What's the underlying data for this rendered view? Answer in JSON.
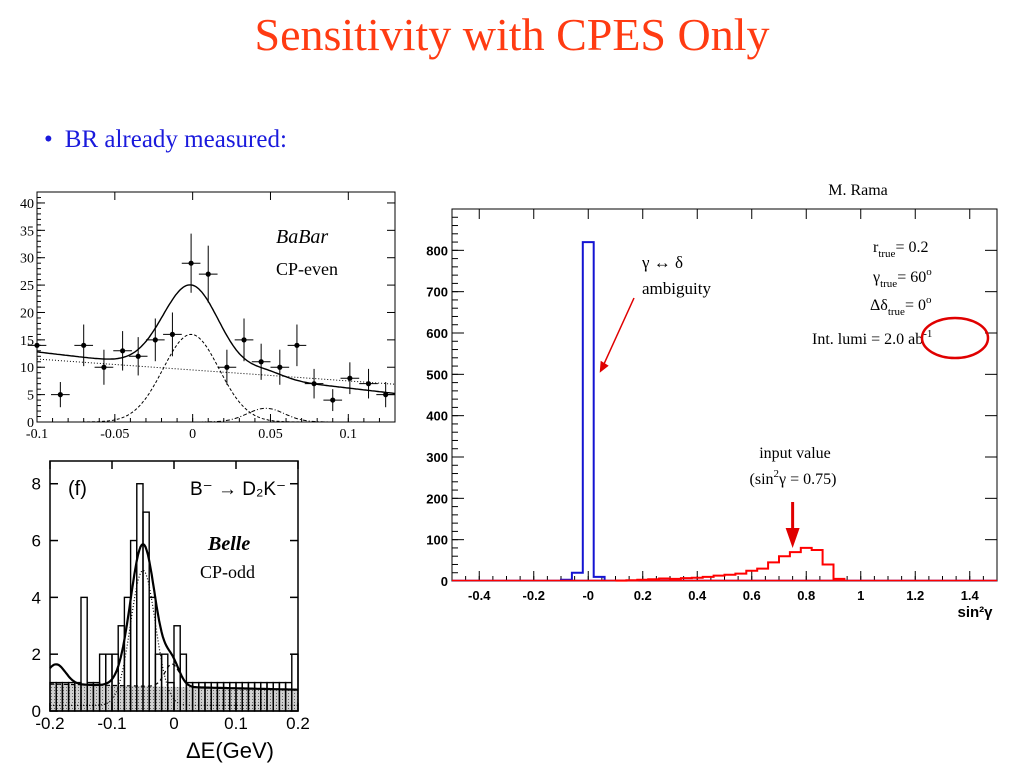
{
  "slide": {
    "title": "Sensitivity with CPES Only",
    "bullet": "BR already measured:"
  },
  "chart_data": [
    {
      "type": "scatter",
      "experiment": "BaBar",
      "subtitle": "CP-even",
      "xlim": [
        -0.1,
        0.13
      ],
      "ylim": [
        0,
        42
      ],
      "x_ticks": [
        -0.1,
        -0.05,
        0,
        0.05,
        0.1
      ],
      "x_tick_labels": [
        "-0.1",
        "-0.05",
        "0",
        "0.05",
        "0.1"
      ],
      "y_ticks": [
        0,
        5,
        10,
        15,
        20,
        25,
        30,
        35,
        40
      ],
      "y_tick_labels": [
        "0",
        "5",
        "10",
        "15",
        "20",
        "25",
        "30",
        "35",
        "40"
      ],
      "points": [
        {
          "x": -0.1,
          "y": 14,
          "err": 3.8
        },
        {
          "x": -0.085,
          "y": 5,
          "err": 2.3
        },
        {
          "x": -0.07,
          "y": 14,
          "err": 3.8
        },
        {
          "x": -0.057,
          "y": 10,
          "err": 3.2
        },
        {
          "x": -0.045,
          "y": 13,
          "err": 3.6
        },
        {
          "x": -0.035,
          "y": 12,
          "err": 3.5
        },
        {
          "x": -0.024,
          "y": 15,
          "err": 3.9
        },
        {
          "x": -0.013,
          "y": 16,
          "err": 4.0
        },
        {
          "x": -0.001,
          "y": 29,
          "err": 5.4
        },
        {
          "x": 0.01,
          "y": 27,
          "err": 5.2
        },
        {
          "x": 0.022,
          "y": 10,
          "err": 3.2
        },
        {
          "x": 0.033,
          "y": 15,
          "err": 3.9
        },
        {
          "x": 0.044,
          "y": 11,
          "err": 3.3
        },
        {
          "x": 0.056,
          "y": 10,
          "err": 3.2
        },
        {
          "x": 0.067,
          "y": 14,
          "err": 3.8
        },
        {
          "x": 0.078,
          "y": 7,
          "err": 2.7
        },
        {
          "x": 0.09,
          "y": 4,
          "err": 2.0
        },
        {
          "x": 0.101,
          "y": 8,
          "err": 2.9
        },
        {
          "x": 0.113,
          "y": 7,
          "err": 2.7
        },
        {
          "x": 0.124,
          "y": 5,
          "err": 2.3
        }
      ],
      "total_fit": {
        "background_intercept": 9.5,
        "background_slope": -33,
        "peak_mu": -0.001,
        "peak_sigma": 0.018,
        "peak_amp": 15.5
      },
      "signal": {
        "mu": -0.001,
        "sigma": 0.018,
        "amp": 16
      },
      "background": {
        "intercept": 9.5,
        "slope": -20
      },
      "satellite": {
        "mu": 0.047,
        "sigma": 0.012,
        "amp": 2.5
      }
    },
    {
      "type": "bar",
      "experiment": "Belle",
      "subtitle": "CP-odd",
      "panel_label": "(f)",
      "decay_label": "B⁻ → D₂K⁻",
      "xlabel": "ΔE(GeV)",
      "xlim": [
        -0.2,
        0.2
      ],
      "ylim": [
        0,
        8.8
      ],
      "x_ticks": [
        -0.2,
        -0.1,
        0,
        0.1,
        0.2
      ],
      "x_tick_labels": [
        "-0.2",
        "-0.1",
        "0",
        "0.1",
        "0.2"
      ],
      "y_ticks": [
        0,
        2,
        4,
        6,
        8
      ],
      "y_tick_labels": [
        "0",
        "2",
        "4",
        "6",
        "8"
      ],
      "bin_width": 0.01,
      "bin_starts": [
        -0.2,
        -0.19,
        -0.18,
        -0.17,
        -0.16,
        -0.15,
        -0.14,
        -0.13,
        -0.12,
        -0.11,
        -0.1,
        -0.09,
        -0.08,
        -0.07,
        -0.06,
        -0.05,
        -0.04,
        -0.03,
        -0.02,
        -0.01,
        0.0,
        0.01,
        0.02,
        0.03,
        0.04,
        0.05,
        0.06,
        0.07,
        0.08,
        0.09,
        0.1,
        0.11,
        0.12,
        0.13,
        0.14,
        0.15,
        0.16,
        0.17,
        0.18,
        0.19
      ],
      "counts": [
        1,
        1,
        1,
        1,
        1,
        4,
        1,
        1,
        2,
        2,
        2,
        3,
        4,
        6,
        8,
        7,
        4,
        2,
        2,
        1,
        3,
        2,
        1,
        1,
        1,
        1,
        1,
        1,
        1,
        1,
        1,
        1,
        1,
        1,
        1,
        1,
        1,
        1,
        1,
        2
      ],
      "fit": {
        "bg_intercept": 0.85,
        "bg_slope": -0.5,
        "peak_mu": -0.05,
        "peak_sigma": 0.02,
        "peak_amp": 5.0,
        "peak2_mu": -0.003,
        "peak2_sigma": 0.012,
        "peak2_amp": 0.8
      }
    },
    {
      "type": "histogram",
      "credit": "M. Rama",
      "xlabel": "sin²γ",
      "xlim": [
        -0.5,
        1.5
      ],
      "ylim": [
        0,
        900
      ],
      "x_ticks": [
        -0.4,
        -0.2,
        0,
        0.2,
        0.4,
        0.6,
        0.8,
        1.0,
        1.2,
        1.4
      ],
      "x_tick_labels": [
        "-0.4",
        "-0.2",
        "-0",
        "0.2",
        "0.4",
        "0.6",
        "0.8",
        "1",
        "1.2",
        "1.4"
      ],
      "y_ticks": [
        0,
        100,
        200,
        300,
        400,
        500,
        600,
        700,
        800
      ],
      "y_tick_labels": [
        "0",
        "100",
        "200",
        "300",
        "400",
        "500",
        "600",
        "700",
        "800"
      ],
      "series": [
        {
          "color": "#1414d2",
          "bin_width": 0.04,
          "bin_starts": [
            -0.1,
            -0.06,
            -0.02,
            0.02
          ],
          "counts": [
            3,
            20,
            820,
            10
          ]
        },
        {
          "color": "#ff0000",
          "bin_width": 0.04,
          "bin_starts": [
            0.1,
            0.14,
            0.18,
            0.22,
            0.26,
            0.3,
            0.34,
            0.38,
            0.42,
            0.46,
            0.5,
            0.54,
            0.58,
            0.62,
            0.66,
            0.7,
            0.74,
            0.78,
            0.82,
            0.86,
            0.9
          ],
          "counts": [
            1,
            2,
            3,
            4,
            6,
            5,
            7,
            8,
            10,
            13,
            15,
            18,
            25,
            30,
            45,
            60,
            70,
            80,
            75,
            40,
            5
          ]
        }
      ],
      "params_legend": {
        "line1_sym": "r",
        "line1_sub": "true",
        "line1_val": "= 0.2",
        "line2_sym": "γ",
        "line2_sub": "true",
        "line2_val": "= 60",
        "line2_sup": "o",
        "line3_sym": "Δδ",
        "line3_sub": "true",
        "line3_val": "= 0",
        "line3_sup": "o",
        "line4_text": "Int. lumi =",
        "line4_val": "2.0 ab",
        "line4_sup": "-1"
      },
      "annotation_ambiguity": {
        "line1": "γ ↔ δ",
        "line2": "ambiguity"
      },
      "annotation_input": {
        "line1": "input value",
        "line2_pre": "(sin",
        "line2_sup": "2",
        "line2_post": "γ = 0.75)"
      },
      "input_marker_x": 0.75,
      "ambiguity_marker_x": 0.02,
      "ambiguity_marker_y": 540
    }
  ]
}
